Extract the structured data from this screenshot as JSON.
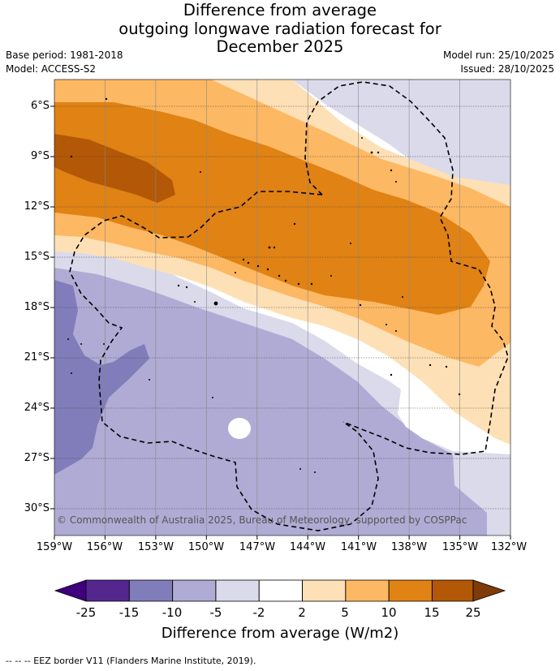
{
  "title": {
    "line1": "Difference from average",
    "line2": "outgoing longwave radiation forecast for",
    "line3": "December 2025"
  },
  "meta": {
    "base_period": "Base period: 1981-2018",
    "model": "Model: ACCESS-S2",
    "model_run": "Model run: 25/10/2025",
    "issued": "Issued: 28/10/2025"
  },
  "map": {
    "lat_labels": [
      "6°S",
      "9°S",
      "12°S",
      "15°S",
      "18°S",
      "21°S",
      "24°S",
      "27°S",
      "30°S"
    ],
    "lon_labels": [
      "159°W",
      "156°W",
      "153°W",
      "150°W",
      "147°W",
      "144°W",
      "141°W",
      "138°W",
      "135°W",
      "132°W"
    ],
    "copyright": "© Commonwealth of Australia 2025, Bureau of Meteorology, supported by COSPPac"
  },
  "colorbar": {
    "title": "Difference from average (W/m2)",
    "ticks": [
      "-25",
      "-15",
      "-10",
      "-5",
      "-2",
      "2",
      "5",
      "10",
      "15",
      "25"
    ],
    "colors": [
      "#3f007d",
      "#54278f",
      "#807dba",
      "#b0abd4",
      "#dadaeb",
      "#ffffff",
      "#fee0b6",
      "#fdb863",
      "#e08214",
      "#b35806",
      "#7f3b08"
    ]
  },
  "footer": {
    "legend": "--  --  -- EEZ border V11 (Flanders Marine Institute, 2019)."
  }
}
